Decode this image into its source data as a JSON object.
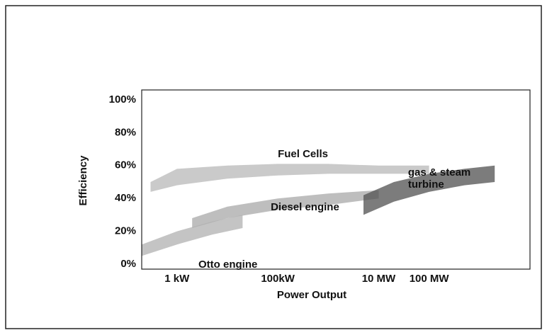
{
  "chart_data": {
    "type": "band",
    "xlabel": "Power Output",
    "ylabel": "Efficiency",
    "xscale": "log",
    "xlim": [
      0.2,
      10000000
    ],
    "xticks": [
      {
        "value": 1,
        "label": "1 kW"
      },
      {
        "value": 100,
        "label": "100kW"
      },
      {
        "value": 10000,
        "label": "10 MW"
      },
      {
        "value": 100000,
        "label": "100 MW"
      }
    ],
    "ylim": [
      -3,
      106
    ],
    "yticks": [
      {
        "value": 0,
        "label": "0%"
      },
      {
        "value": 20,
        "label": "20%"
      },
      {
        "value": 40,
        "label": "40%"
      },
      {
        "value": 60,
        "label": "60%"
      },
      {
        "value": 80,
        "label": "80%"
      },
      {
        "value": 100,
        "label": "100%"
      }
    ],
    "grid": false,
    "series": [
      {
        "name": "Fuel Cells",
        "color": "#b8b8b8",
        "x": [
          0.3,
          1,
          10,
          100,
          1000,
          10000,
          100000
        ],
        "low": [
          44,
          48,
          52,
          54,
          55,
          55,
          55
        ],
        "high": [
          50,
          58,
          60,
          61,
          61,
          60,
          60
        ]
      },
      {
        "name": "Diesel engine",
        "color": "#a8a8a8",
        "x": [
          2,
          10,
          100,
          1000,
          10000
        ],
        "low": [
          22,
          28,
          33,
          36,
          40
        ],
        "high": [
          28,
          35,
          40,
          43,
          45
        ]
      },
      {
        "name": "Otto engine",
        "color": "#b0b0b0",
        "x": [
          0.2,
          1,
          5,
          20
        ],
        "low": [
          5,
          12,
          18,
          22
        ],
        "high": [
          12,
          20,
          26,
          30
        ]
      },
      {
        "name": "gas & steam turbine",
        "color": "#505050",
        "x": [
          5000,
          20000,
          100000,
          500000,
          2000000
        ],
        "low": [
          30,
          38,
          44,
          48,
          50
        ],
        "high": [
          42,
          50,
          55,
          58,
          60
        ]
      }
    ]
  }
}
